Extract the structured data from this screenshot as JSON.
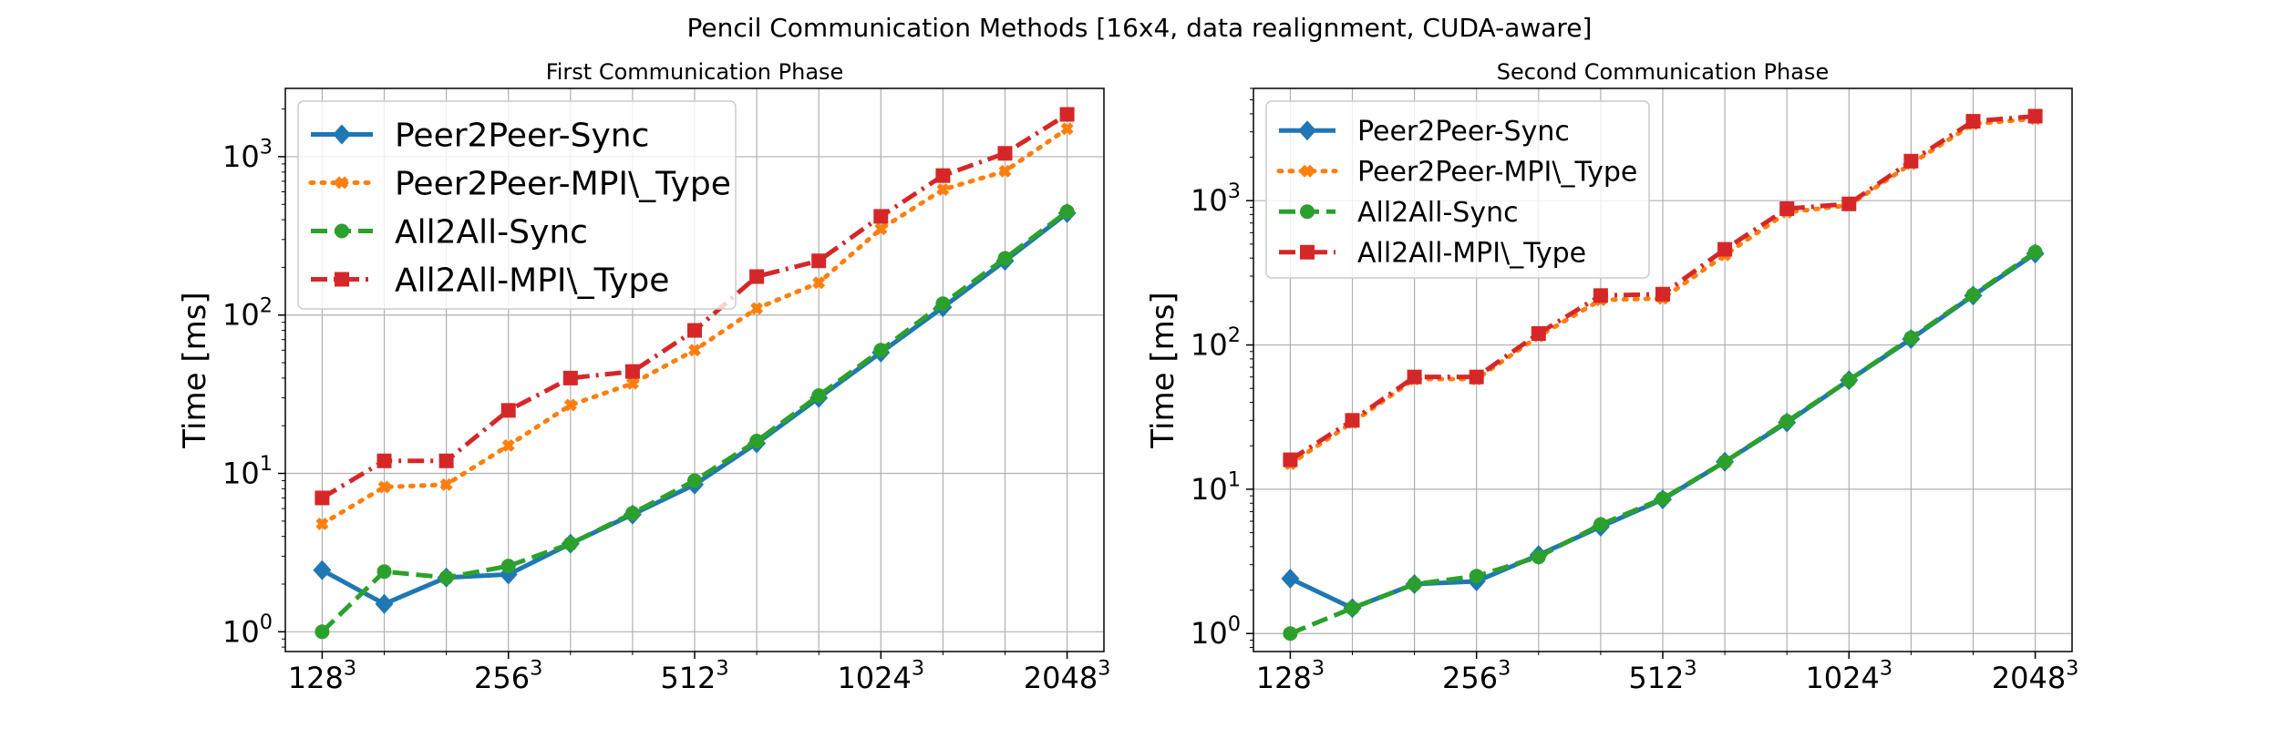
{
  "figure": {
    "suptitle": "Pencil Communication Methods [16x4, data realignment, CUDA-aware]"
  },
  "colors": {
    "Peer2Peer-Sync": "#1f77b4",
    "Peer2Peer-MPI\\_Type": "#ff7f0e",
    "All2All-Sync": "#2ca02c",
    "All2All-MPI\\_Type": "#d62728",
    "grid": "#b0b0b0"
  },
  "chart_data": [
    {
      "type": "line",
      "title": "First Communication Phase",
      "xlabel": "",
      "ylabel": "Time [ms]",
      "yscale": "log",
      "ylim": [
        0.75,
        2700
      ],
      "x_index": [
        0,
        1,
        2,
        3,
        4,
        5,
        6,
        7,
        8,
        9,
        10,
        11,
        12
      ],
      "xtick_positions": [
        0,
        3,
        6,
        9,
        12
      ],
      "xtick_labels": [
        {
          "base": "128",
          "exp": "3"
        },
        {
          "base": "256",
          "exp": "3"
        },
        {
          "base": "512",
          "exp": "3"
        },
        {
          "base": "1024",
          "exp": "3"
        },
        {
          "base": "2048",
          "exp": "3"
        }
      ],
      "ytick_values": [
        1,
        10,
        100,
        1000
      ],
      "ytick_labels": [
        {
          "base": "10",
          "exp": "0"
        },
        {
          "base": "10",
          "exp": "1"
        },
        {
          "base": "10",
          "exp": "2"
        },
        {
          "base": "10",
          "exp": "3"
        }
      ],
      "grid": true,
      "legend_position": "upper-left",
      "series": [
        {
          "name": "Peer2Peer-Sync",
          "style": "solid",
          "marker": "diamond",
          "values": [
            2.45,
            1.5,
            2.2,
            2.3,
            3.6,
            5.5,
            8.5,
            15.5,
            30,
            58,
            112,
            220,
            440
          ]
        },
        {
          "name": "Peer2Peer-MPI\\_Type",
          "style": "dotted",
          "marker": "x",
          "values": [
            4.8,
            8.2,
            8.5,
            15,
            27,
            37,
            60,
            110,
            160,
            350,
            620,
            810,
            1500
          ]
        },
        {
          "name": "All2All-Sync",
          "style": "dashed",
          "marker": "circle",
          "values": [
            1.0,
            2.4,
            2.2,
            2.6,
            3.6,
            5.6,
            9.0,
            16,
            31,
            60,
            118,
            228,
            450
          ]
        },
        {
          "name": "All2All-MPI\\_Type",
          "style": "dashdot",
          "marker": "square",
          "values": [
            7.0,
            12,
            12,
            25,
            40,
            44,
            80,
            175,
            220,
            420,
            760,
            1050,
            1850
          ]
        }
      ]
    },
    {
      "type": "line",
      "title": "Second Communication Phase",
      "xlabel": "",
      "ylabel": "Time [ms]",
      "yscale": "log",
      "ylim": [
        0.75,
        6000
      ],
      "x_index": [
        0,
        1,
        2,
        3,
        4,
        5,
        6,
        7,
        8,
        9,
        10,
        11,
        12
      ],
      "xtick_positions": [
        0,
        3,
        6,
        9,
        12
      ],
      "xtick_labels": [
        {
          "base": "128",
          "exp": "3"
        },
        {
          "base": "256",
          "exp": "3"
        },
        {
          "base": "512",
          "exp": "3"
        },
        {
          "base": "1024",
          "exp": "3"
        },
        {
          "base": "2048",
          "exp": "3"
        }
      ],
      "ytick_values": [
        1,
        10,
        100,
        1000
      ],
      "ytick_labels": [
        {
          "base": "10",
          "exp": "0"
        },
        {
          "base": "10",
          "exp": "1"
        },
        {
          "base": "10",
          "exp": "2"
        },
        {
          "base": "10",
          "exp": "3"
        }
      ],
      "grid": true,
      "legend_position": "upper-left",
      "series": [
        {
          "name": "Peer2Peer-Sync",
          "style": "solid",
          "marker": "diamond",
          "values": [
            2.4,
            1.5,
            2.2,
            2.3,
            3.5,
            5.5,
            8.5,
            15.5,
            29,
            57,
            110,
            220,
            430
          ]
        },
        {
          "name": "Peer2Peer-MPI\\_Type",
          "style": "dotted",
          "marker": "x",
          "values": [
            15,
            29,
            58,
            58,
            115,
            205,
            210,
            420,
            830,
            930,
            1800,
            3400,
            3700
          ]
        },
        {
          "name": "All2All-Sync",
          "style": "dashed",
          "marker": "circle",
          "values": [
            1.0,
            1.5,
            2.2,
            2.5,
            3.4,
            5.7,
            8.6,
            15.5,
            29.5,
            57,
            112,
            222,
            440
          ]
        },
        {
          "name": "All2All-MPI\\_Type",
          "style": "dashdot",
          "marker": "square",
          "values": [
            16,
            30,
            60,
            60,
            120,
            220,
            225,
            460,
            880,
            950,
            1880,
            3550,
            3850
          ]
        }
      ]
    }
  ]
}
